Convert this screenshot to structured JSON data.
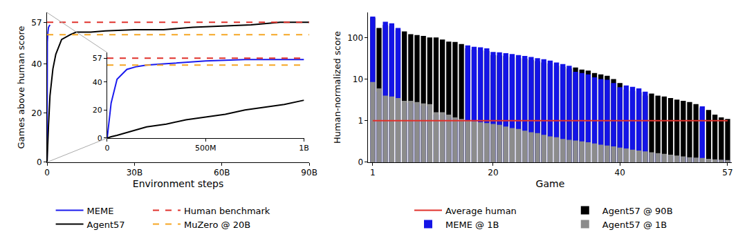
{
  "chart_data": [
    {
      "type": "line",
      "x_label": "Environment steps",
      "y_label": "Games above human score",
      "x": [
        0,
        100000000,
        300000000,
        500000000,
        1000000000,
        2000000000,
        3000000000,
        5000000000,
        8000000000,
        10000000000,
        15000000000,
        20000000000,
        30000000000,
        40000000000,
        50000000000,
        60000000000,
        70000000000,
        80000000000,
        90000000000
      ],
      "xlim": [
        0,
        90000000000
      ],
      "xticks": [
        0,
        {
          "value": 30000000000,
          "label": "30B"
        },
        {
          "value": 60000000000,
          "label": "60B"
        },
        {
          "value": 90000000000,
          "label": "90B"
        }
      ],
      "ylim": [
        0,
        61
      ],
      "yticks": [
        0,
        20,
        40,
        57
      ],
      "grid": false,
      "legend": "bottom",
      "series": [
        {
          "name": "MEME",
          "color": "#1a1aee",
          "line_style": "solid",
          "values": [
            0,
            49,
            53,
            55,
            56,
            null,
            null,
            null,
            null,
            null,
            null,
            null,
            null,
            null,
            null,
            null,
            null,
            null,
            null
          ]
        },
        {
          "name": "Agent57",
          "color": "#000000",
          "line_style": "solid",
          "values": [
            0,
            4,
            10,
            15,
            27,
            38,
            44,
            50,
            52,
            53,
            53,
            53.5,
            54,
            54,
            55,
            55.5,
            56,
            57,
            57
          ]
        },
        {
          "name": "Human benchmark",
          "color": "#e0302a",
          "line_style": "dashed",
          "values": [
            57,
            57,
            57,
            57,
            57,
            57,
            57,
            57,
            57,
            57,
            57,
            57,
            57,
            57,
            57,
            57,
            57,
            57,
            57
          ]
        },
        {
          "name": "MuZero @ 20B",
          "color": "#f5a623",
          "line_style": "dashed",
          "values": [
            52,
            52,
            52,
            52,
            52,
            52,
            52,
            52,
            52,
            52,
            52,
            52,
            52,
            52,
            52,
            52,
            52,
            52,
            52
          ]
        }
      ]
    },
    {
      "type": "line",
      "x": [
        0,
        20000000,
        50000000,
        100000000,
        150000000,
        200000000,
        300000000,
        400000000,
        500000000,
        600000000,
        700000000,
        800000000,
        900000000,
        1000000000
      ],
      "xlim": [
        0,
        1000000000
      ],
      "xticks": [
        0,
        {
          "value": 500000000,
          "label": "500M"
        },
        {
          "value": 1000000000,
          "label": "1B"
        }
      ],
      "ylim": [
        0,
        61
      ],
      "yticks": [
        0,
        20,
        40,
        57
      ],
      "grid": false,
      "series": [
        {
          "name": "MEME",
          "color": "#1a1aee",
          "line_style": "solid",
          "values": [
            0,
            25,
            42,
            49,
            51,
            52,
            53,
            54,
            55,
            55.5,
            56,
            56,
            56,
            56
          ]
        },
        {
          "name": "Agent57",
          "color": "#000000",
          "line_style": "solid",
          "values": [
            0,
            1,
            2,
            4,
            6,
            8,
            10,
            13,
            15,
            17,
            20,
            22,
            24,
            27
          ]
        },
        {
          "name": "Human benchmark",
          "color": "#e0302a",
          "line_style": "dashed",
          "values": [
            57,
            57,
            57,
            57,
            57,
            57,
            57,
            57,
            57,
            57,
            57,
            57,
            57,
            57
          ]
        },
        {
          "name": "MuZero @ 20B",
          "color": "#f5a623",
          "line_style": "dashed",
          "values": [
            52,
            52,
            52,
            52,
            52,
            52,
            52,
            52,
            52,
            52,
            52,
            52,
            52,
            52
          ]
        }
      ]
    },
    {
      "type": "bar",
      "x_label": "Game",
      "y_label": "Human-normalized score",
      "x": [
        1,
        2,
        3,
        4,
        5,
        6,
        7,
        8,
        9,
        10,
        11,
        12,
        13,
        14,
        15,
        16,
        17,
        18,
        19,
        20,
        21,
        22,
        23,
        24,
        25,
        26,
        27,
        28,
        29,
        30,
        31,
        32,
        33,
        34,
        35,
        36,
        37,
        38,
        39,
        40,
        41,
        42,
        43,
        44,
        45,
        46,
        47,
        48,
        49,
        50,
        51,
        52,
        53,
        54,
        55,
        56,
        57
      ],
      "xlim": [
        0.3,
        57.7
      ],
      "xticks": [
        1,
        20,
        40,
        57
      ],
      "ylim": [
        0,
        400
      ],
      "yticks": [
        0,
        1,
        10,
        100
      ],
      "log": "y",
      "stacked": false,
      "grid": false,
      "legend": "bottom",
      "series": [
        {
          "name": "Agent57 @ 90B",
          "type": "bar",
          "color": "#000000",
          "values": [
            300,
            170,
            200,
            190,
            150,
            140,
            120,
            115,
            110,
            100,
            100,
            90,
            80,
            78,
            70,
            55,
            51,
            49,
            47,
            38,
            37,
            36,
            34,
            32,
            31,
            29,
            27,
            25,
            24,
            21,
            20,
            18,
            19,
            17,
            16,
            14,
            13,
            12,
            10,
            8,
            5.6,
            5.2,
            4.8,
            4,
            4.5,
            4,
            3.8,
            3.5,
            3.2,
            3,
            2.8,
            2.5,
            2.0,
            1.8,
            1.4,
            1.2,
            1.1
          ]
        },
        {
          "name": "MEME @ 1B",
          "type": "bar",
          "color": "#1414e6",
          "values": [
            320,
            5,
            240,
            220,
            170,
            2.7,
            2.7,
            2.5,
            2.3,
            2.2,
            1.4,
            1.4,
            1.2,
            1.1,
            1.0,
            65,
            60,
            58,
            55,
            45,
            44,
            42,
            40,
            38,
            36,
            34,
            32,
            30,
            28,
            25,
            23,
            21,
            15,
            14,
            13,
            11,
            10,
            9.6,
            8,
            6.4,
            7,
            6.5,
            6,
            5,
            0.22,
            0.2,
            0.18,
            0.16,
            0.14,
            0.13,
            0.11,
            0.1,
            2.2,
            0.07,
            0.06,
            0.05,
            0.045
          ]
        },
        {
          "name": "Agent57 @ 1B",
          "type": "bar",
          "color": "#8c8c8c",
          "values": [
            8.5,
            6,
            4,
            3.8,
            3.5,
            3,
            3,
            2.8,
            2.6,
            2.5,
            1.6,
            1.6,
            1.4,
            1.2,
            1.1,
            1.0,
            0.98,
            0.96,
            0.94,
            0.92,
            0.9,
            0.86,
            0.82,
            0.8,
            0.76,
            0.72,
            0.7,
            0.66,
            0.62,
            0.6,
            0.56,
            0.54,
            0.52,
            0.5,
            0.48,
            0.45,
            0.42,
            0.4,
            0.38,
            0.35,
            0.33,
            0.3,
            0.28,
            0.26,
            0.24,
            0.22,
            0.2,
            0.18,
            0.16,
            0.14,
            0.12,
            0.11,
            0.1,
            0.08,
            0.07,
            0.06,
            0.05
          ]
        },
        {
          "name": "Average human",
          "type": "line",
          "color": "#e0302a",
          "line_style": "solid",
          "values": [
            1,
            1,
            1,
            1,
            1,
            1,
            1,
            1,
            1,
            1,
            1,
            1,
            1,
            1,
            1,
            1,
            1,
            1,
            1,
            1,
            1,
            1,
            1,
            1,
            1,
            1,
            1,
            1,
            1,
            1,
            1,
            1,
            1,
            1,
            1,
            1,
            1,
            1,
            1,
            1,
            1,
            1,
            1,
            1,
            1,
            1,
            1,
            1,
            1,
            1,
            1,
            1,
            1,
            1,
            1,
            1,
            1
          ]
        }
      ]
    }
  ]
}
